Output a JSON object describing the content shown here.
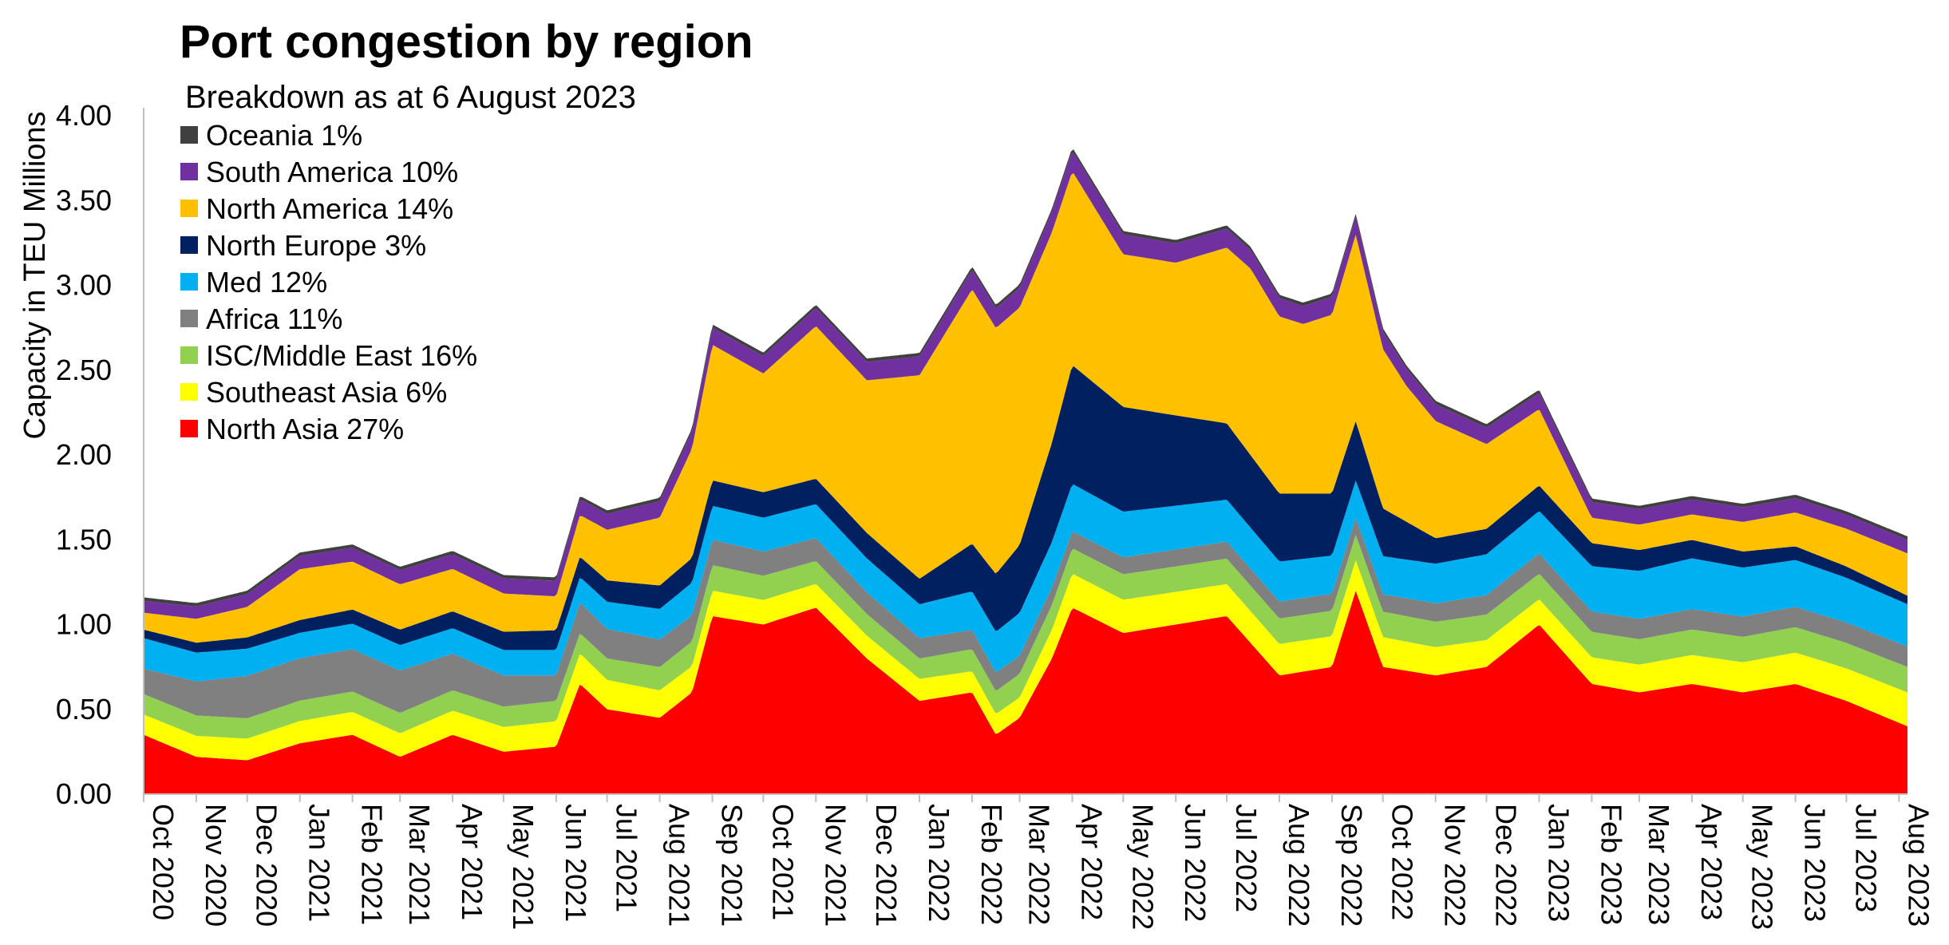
{
  "chart_data": {
    "type": "area",
    "title": "Port congestion by region",
    "subtitle": "Breakdown as at 6 August 2023",
    "xlabel": "",
    "ylabel": "Capacity in TEU Millions",
    "ylim": [
      0,
      4.0
    ],
    "yticks": [
      "0.00",
      "0.50",
      "1.00",
      "1.50",
      "2.00",
      "2.50",
      "3.00",
      "3.50",
      "4.00"
    ],
    "x_range": [
      "2020-10-01",
      "2023-08-06"
    ],
    "x_tick_labels": [
      "Oct 2020",
      "Nov 2020",
      "Dec 2020",
      "Jan 2021",
      "Feb 2021",
      "Mar 2021",
      "Apr 2021",
      "May 2021",
      "Jun 2021",
      "Jul 2021",
      "Aug 2021",
      "Sep 2021",
      "Oct 2021",
      "Nov 2021",
      "Dec 2021",
      "Jan 2022",
      "Feb 2022",
      "Mar 2022",
      "Apr 2022",
      "May 2022",
      "Jun 2022",
      "Jul 2022",
      "Aug 2022",
      "Sep 2022",
      "Oct 2022",
      "Nov 2022",
      "Dec 2022",
      "Jan 2023",
      "Feb 2023",
      "Mar 2023",
      "Apr 2023",
      "May 2023",
      "Jun 2023",
      "Jul 2023",
      "Aug 2023"
    ],
    "stacked": true,
    "grid": false,
    "legend_position": "top-left",
    "legend": [
      {
        "label": "Oceania 1%",
        "color": "#404040"
      },
      {
        "label": "South America 10%",
        "color": "#7030A0"
      },
      {
        "label": "North America 14%",
        "color": "#FFC000"
      },
      {
        "label": "North Europe 3%",
        "color": "#002060"
      },
      {
        "label": "Med 12%",
        "color": "#00B0F0"
      },
      {
        "label": "Africa 11%",
        "color": "#808080"
      },
      {
        "label": "ISC/Middle East 16%",
        "color": "#92D050"
      },
      {
        "label": "Southeast Asia 6%",
        "color": "#FFFF00"
      },
      {
        "label": "North Asia 27%",
        "color": "#FF0000"
      }
    ],
    "series": [
      {
        "name": "North Asia",
        "color": "#FF0000",
        "x": [
          "2020-10-01",
          "2020-11-01",
          "2020-12-01",
          "2021-01-01",
          "2021-02-01",
          "2021-03-01",
          "2021-04-01",
          "2021-05-01",
          "2021-06-01",
          "2021-06-15",
          "2021-07-01",
          "2021-08-01",
          "2021-08-20",
          "2021-09-01",
          "2021-10-01",
          "2021-11-01",
          "2021-12-01",
          "2022-01-01",
          "2022-02-01",
          "2022-02-15",
          "2022-03-01",
          "2022-03-20",
          "2022-04-01",
          "2022-05-01",
          "2022-06-01",
          "2022-07-01",
          "2022-08-01",
          "2022-09-01",
          "2022-09-15",
          "2022-10-01",
          "2022-11-01",
          "2022-12-01",
          "2023-01-01",
          "2023-02-01",
          "2023-03-01",
          "2023-04-01",
          "2023-05-01",
          "2023-06-01",
          "2023-07-01",
          "2023-08-06"
        ],
        "values": [
          0.35,
          0.22,
          0.2,
          0.3,
          0.35,
          0.22,
          0.35,
          0.25,
          0.28,
          0.65,
          0.5,
          0.45,
          0.6,
          1.05,
          1.0,
          1.1,
          0.8,
          0.55,
          0.6,
          0.35,
          0.45,
          0.8,
          1.1,
          0.95,
          1.0,
          1.05,
          0.7,
          0.75,
          1.2,
          0.75,
          0.7,
          0.75,
          1.0,
          0.65,
          0.6,
          0.65,
          0.6,
          0.65,
          0.55,
          0.4
        ]
      },
      {
        "name": "Southeast Asia",
        "color": "#FFFF00",
        "x": [
          "2020-10-01",
          "2021-06-01",
          "2021-06-15",
          "2021-09-01",
          "2022-03-01",
          "2022-04-01",
          "2022-09-15",
          "2023-01-01",
          "2023-08-06"
        ],
        "values": [
          0.12,
          0.15,
          0.18,
          0.15,
          0.12,
          0.2,
          0.18,
          0.15,
          0.2
        ]
      },
      {
        "name": "ISC/Middle East",
        "color": "#92D050",
        "x": [
          "2020-10-01",
          "2021-06-15",
          "2021-09-01",
          "2022-01-01",
          "2022-04-01",
          "2022-09-15",
          "2023-01-01",
          "2023-08-06"
        ],
        "values": [
          0.12,
          0.12,
          0.15,
          0.12,
          0.15,
          0.15,
          0.15,
          0.15
        ]
      },
      {
        "name": "Africa",
        "color": "#808080",
        "x": [
          "2020-10-01",
          "2020-12-01",
          "2021-03-01",
          "2021-06-01",
          "2021-06-15",
          "2021-09-01",
          "2022-01-01",
          "2022-04-01",
          "2022-09-15",
          "2023-01-01",
          "2023-08-06"
        ],
        "values": [
          0.15,
          0.25,
          0.25,
          0.15,
          0.18,
          0.15,
          0.12,
          0.1,
          0.1,
          0.12,
          0.12
        ]
      },
      {
        "name": "Med",
        "color": "#00B0F0",
        "x": [
          "2020-10-01",
          "2021-01-01",
          "2021-06-15",
          "2021-09-01",
          "2022-01-01",
          "2022-04-01",
          "2022-09-15",
          "2023-01-01",
          "2023-04-01",
          "2023-08-06"
        ],
        "values": [
          0.18,
          0.15,
          0.15,
          0.2,
          0.2,
          0.28,
          0.22,
          0.25,
          0.3,
          0.25
        ]
      },
      {
        "name": "North Europe",
        "color": "#002060",
        "x": [
          "2020-10-01",
          "2021-06-15",
          "2021-09-01",
          "2022-01-01",
          "2022-03-01",
          "2022-04-01",
          "2022-07-01",
          "2022-08-01",
          "2022-09-15",
          "2022-11-01",
          "2023-01-01",
          "2023-08-06"
        ],
        "values": [
          0.05,
          0.12,
          0.15,
          0.15,
          0.4,
          0.7,
          0.45,
          0.4,
          0.35,
          0.15,
          0.15,
          0.05
        ]
      },
      {
        "name": "North America",
        "color": "#FFC000",
        "x": [
          "2020-10-01",
          "2020-12-01",
          "2021-01-01",
          "2021-04-01",
          "2021-06-01",
          "2021-08-01",
          "2021-09-01",
          "2021-10-01",
          "2021-11-01",
          "2021-12-01",
          "2022-01-01",
          "2022-02-01",
          "2022-03-01",
          "2022-03-25",
          "2022-05-01",
          "2022-06-01",
          "2022-07-15",
          "2022-08-15",
          "2022-09-15",
          "2022-10-15",
          "2022-12-01",
          "2023-01-01",
          "2023-02-01",
          "2023-04-01",
          "2023-06-01",
          "2023-08-06"
        ],
        "values": [
          0.1,
          0.18,
          0.3,
          0.25,
          0.2,
          0.4,
          0.8,
          0.7,
          0.9,
          0.9,
          1.2,
          1.5,
          1.4,
          1.2,
          0.9,
          0.9,
          1.1,
          1.0,
          1.1,
          0.8,
          0.5,
          0.45,
          0.15,
          0.15,
          0.2,
          0.25
        ]
      },
      {
        "name": "South America",
        "color": "#7030A0",
        "x": [
          "2020-10-01",
          "2021-09-01",
          "2022-04-01",
          "2022-10-15",
          "2023-08-06"
        ],
        "values": [
          0.07,
          0.1,
          0.12,
          0.1,
          0.08
        ]
      },
      {
        "name": "Oceania",
        "color": "#404040",
        "x": [
          "2020-10-01",
          "2023-08-06"
        ],
        "values": [
          0.02,
          0.02
        ]
      }
    ]
  }
}
